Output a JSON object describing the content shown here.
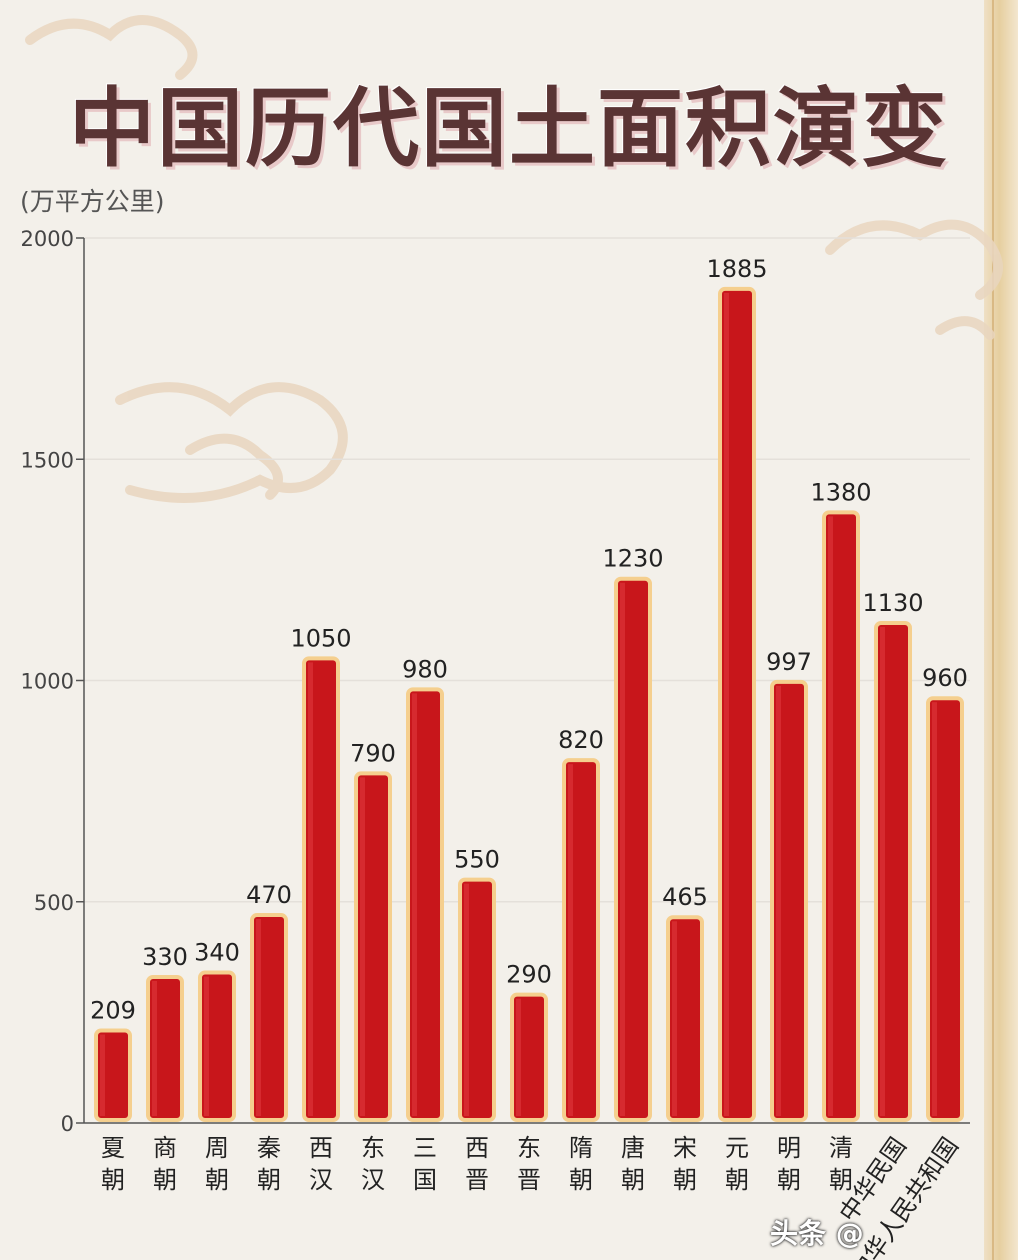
{
  "title": "中国历代国土面积演变",
  "unit": "(万平方公里)",
  "watermark": "头条 @",
  "colors": {
    "bar": "#c8161b",
    "bar_border": "#f5cf8e",
    "title": "#5a3434"
  },
  "chart_data": {
    "type": "bar",
    "title": "中国历代国土面积演变",
    "ylabel": "(万平方公里)",
    "ylim": [
      0,
      2000
    ],
    "yticks": [
      0,
      500,
      1000,
      1500,
      2000
    ],
    "grid": true,
    "categories": [
      "夏朝",
      "商朝",
      "周朝",
      "秦朝",
      "西汉",
      "东汉",
      "三国",
      "西晋",
      "东晋",
      "隋朝",
      "唐朝",
      "宋朝",
      "元朝",
      "明朝",
      "清朝",
      "中华民国",
      "中华人民共和国"
    ],
    "category_labels": [
      "夏\n朝",
      "商\n朝",
      "周\n朝",
      "秦\n朝",
      "西\n汉",
      "东\n汉",
      "三\n国",
      "西\n晋",
      "东\n晋",
      "隋\n朝",
      "唐\n朝",
      "宋\n朝",
      "元\n朝",
      "明\n朝",
      "清\n朝",
      "中华民国",
      "中华人民共和国"
    ],
    "values": [
      209,
      330,
      340,
      470,
      1050,
      790,
      980,
      550,
      290,
      820,
      1230,
      465,
      1885,
      997,
      1380,
      1130,
      960
    ],
    "value_labels": [
      "209",
      "330",
      "340",
      "470",
      "1050",
      "790",
      "980",
      "550",
      "290",
      "820",
      "1230",
      "465",
      "1885",
      "997",
      "1380",
      "1130",
      "960"
    ]
  }
}
